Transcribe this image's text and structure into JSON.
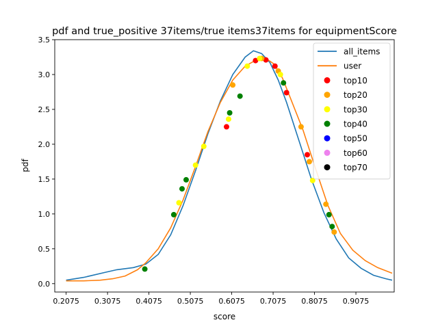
{
  "chart_data": {
    "type": "line",
    "title": "pdf and true_positive 37items/true items37items for equipmentScore",
    "xlabel": "score",
    "ylabel": "pdf",
    "xlim": [
      0.18,
      1.0
    ],
    "ylim": [
      -0.12,
      3.5
    ],
    "xticks": [
      0.2075,
      0.3075,
      0.4075,
      0.5075,
      0.6075,
      0.7075,
      0.8075,
      0.9075
    ],
    "xtick_labels": [
      "0.2075",
      "0.3075",
      "0.4075",
      "0.5075",
      "0.6075",
      "0.7075",
      "0.8075",
      "0.9075"
    ],
    "yticks": [
      0.0,
      0.5,
      1.0,
      1.5,
      2.0,
      2.5,
      3.0,
      3.5
    ],
    "ytick_labels": [
      "0.0",
      "0.5",
      "1.0",
      "1.5",
      "2.0",
      "2.5",
      "3.0",
      "3.5"
    ],
    "grid": false,
    "legend_position": "top-right",
    "lines": [
      {
        "name": "all_items",
        "color": "#1f77b4",
        "points": [
          [
            0.2075,
            0.05
          ],
          [
            0.25,
            0.09
          ],
          [
            0.3,
            0.16
          ],
          [
            0.33,
            0.2
          ],
          [
            0.37,
            0.23
          ],
          [
            0.4,
            0.28
          ],
          [
            0.43,
            0.42
          ],
          [
            0.46,
            0.7
          ],
          [
            0.49,
            1.12
          ],
          [
            0.52,
            1.62
          ],
          [
            0.55,
            2.15
          ],
          [
            0.58,
            2.62
          ],
          [
            0.61,
            3.0
          ],
          [
            0.64,
            3.25
          ],
          [
            0.66,
            3.34
          ],
          [
            0.68,
            3.3
          ],
          [
            0.7,
            3.17
          ],
          [
            0.72,
            2.92
          ],
          [
            0.74,
            2.6
          ],
          [
            0.77,
            2.05
          ],
          [
            0.8,
            1.5
          ],
          [
            0.83,
            1.02
          ],
          [
            0.86,
            0.64
          ],
          [
            0.89,
            0.37
          ],
          [
            0.92,
            0.22
          ],
          [
            0.95,
            0.12
          ],
          [
            0.98,
            0.07
          ],
          [
            0.995,
            0.05
          ]
        ]
      },
      {
        "name": "user",
        "color": "#ff7f0e",
        "points": [
          [
            0.2075,
            0.04
          ],
          [
            0.25,
            0.04
          ],
          [
            0.29,
            0.05
          ],
          [
            0.32,
            0.07
          ],
          [
            0.35,
            0.11
          ],
          [
            0.38,
            0.2
          ],
          [
            0.4,
            0.3
          ],
          [
            0.43,
            0.5
          ],
          [
            0.46,
            0.8
          ],
          [
            0.49,
            1.2
          ],
          [
            0.52,
            1.68
          ],
          [
            0.55,
            2.18
          ],
          [
            0.58,
            2.6
          ],
          [
            0.61,
            2.92
          ],
          [
            0.64,
            3.12
          ],
          [
            0.67,
            3.22
          ],
          [
            0.69,
            3.23
          ],
          [
            0.71,
            3.15
          ],
          [
            0.73,
            2.95
          ],
          [
            0.75,
            2.65
          ],
          [
            0.78,
            2.2
          ],
          [
            0.81,
            1.65
          ],
          [
            0.84,
            1.12
          ],
          [
            0.87,
            0.72
          ],
          [
            0.9,
            0.48
          ],
          [
            0.93,
            0.33
          ],
          [
            0.96,
            0.23
          ],
          [
            0.995,
            0.15
          ]
        ]
      }
    ],
    "series": [
      {
        "name": "top10",
        "color": "#ff0000",
        "points": [
          [
            0.595,
            2.25
          ],
          [
            0.665,
            3.2
          ],
          [
            0.69,
            3.21
          ],
          [
            0.712,
            3.12
          ],
          [
            0.74,
            2.74
          ],
          [
            0.79,
            1.85
          ]
        ]
      },
      {
        "name": "top20",
        "color": "#ffa500",
        "points": [
          [
            0.61,
            2.85
          ],
          [
            0.68,
            3.23
          ],
          [
            0.72,
            3.05
          ],
          [
            0.775,
            2.25
          ],
          [
            0.795,
            1.75
          ],
          [
            0.835,
            1.14
          ],
          [
            0.855,
            0.74
          ]
        ]
      },
      {
        "name": "top30",
        "color": "#ffff00",
        "points": [
          [
            0.48,
            1.16
          ],
          [
            0.52,
            1.7
          ],
          [
            0.54,
            1.97
          ],
          [
            0.6,
            2.36
          ],
          [
            0.645,
            3.12
          ],
          [
            0.675,
            3.23
          ],
          [
            0.725,
            3.0
          ],
          [
            0.803,
            1.48
          ]
        ]
      },
      {
        "name": "top40",
        "color": "#008000",
        "points": [
          [
            0.3975,
            0.21
          ],
          [
            0.4675,
            0.99
          ],
          [
            0.4875,
            1.36
          ],
          [
            0.4975,
            1.49
          ],
          [
            0.6025,
            2.45
          ],
          [
            0.6275,
            2.69
          ],
          [
            0.7325,
            2.88
          ],
          [
            0.8425,
            0.99
          ],
          [
            0.85,
            0.82
          ]
        ]
      },
      {
        "name": "top50",
        "color": "#0000ff",
        "points": []
      },
      {
        "name": "top60",
        "color": "#ee82ee",
        "points": []
      },
      {
        "name": "top70",
        "color": "#000000",
        "points": []
      }
    ]
  }
}
